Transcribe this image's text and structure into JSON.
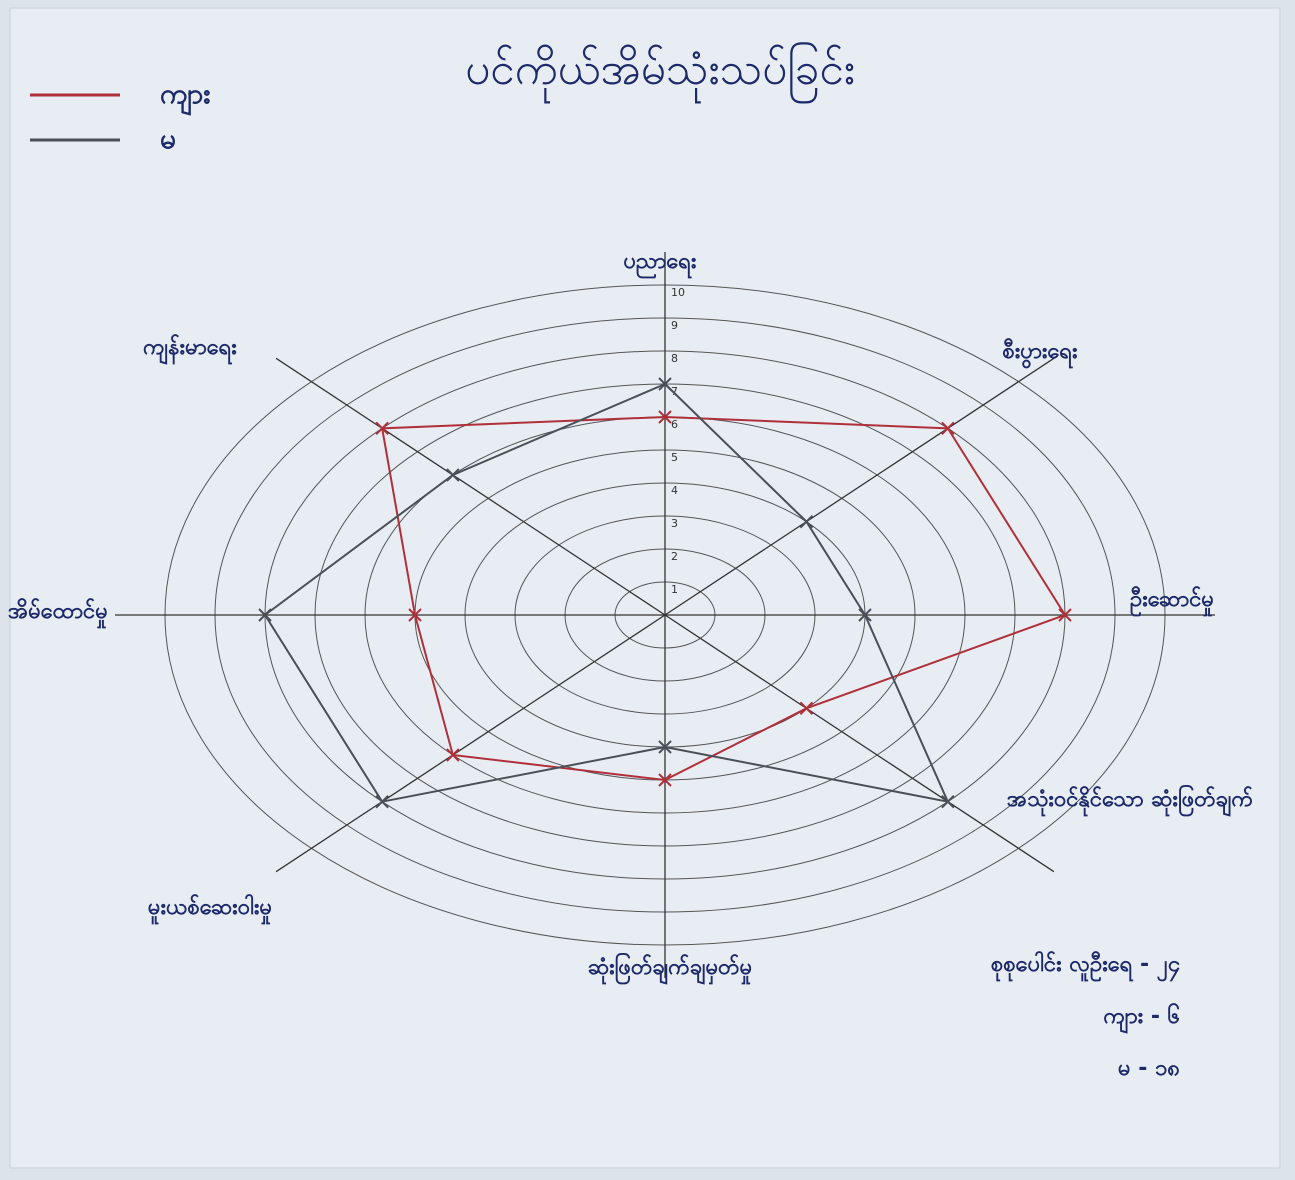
{
  "chart_data": {
    "type": "radar",
    "title": "ပင်ကိုယ်အိမ်သုံးသပ်ခြင်း",
    "categories": [
      "ပညာရေး",
      "စီးပွားရေး",
      "ဦးဆောင်မှု",
      "အသုံးဝင်နိုင်သော ဆုံးဖြတ်ချက်",
      "ဆုံးဖြတ်ချက်ချမှတ်မှု",
      "မူးယစ်ဆေးဝါးမှု",
      "အိမ်ထောင်မှု",
      "ကျန်းမာရေး"
    ],
    "series": [
      {
        "name": "ကျား",
        "color": "#b0303a",
        "values": [
          6,
          8,
          8,
          4,
          5,
          6,
          5,
          8
        ]
      },
      {
        "name": "မ",
        "color": "#4a4f58",
        "values": [
          7,
          4,
          4,
          8,
          4,
          8,
          8,
          6
        ]
      }
    ],
    "rlim": [
      0,
      10
    ],
    "rticks": [
      1,
      2,
      3,
      4,
      5,
      6,
      7,
      8,
      9,
      10
    ],
    "notes": [
      "စုစုပေါင်း လူဦးရေ - ၂၄",
      "ကျား - ၆",
      "မ - ၁၈"
    ]
  }
}
